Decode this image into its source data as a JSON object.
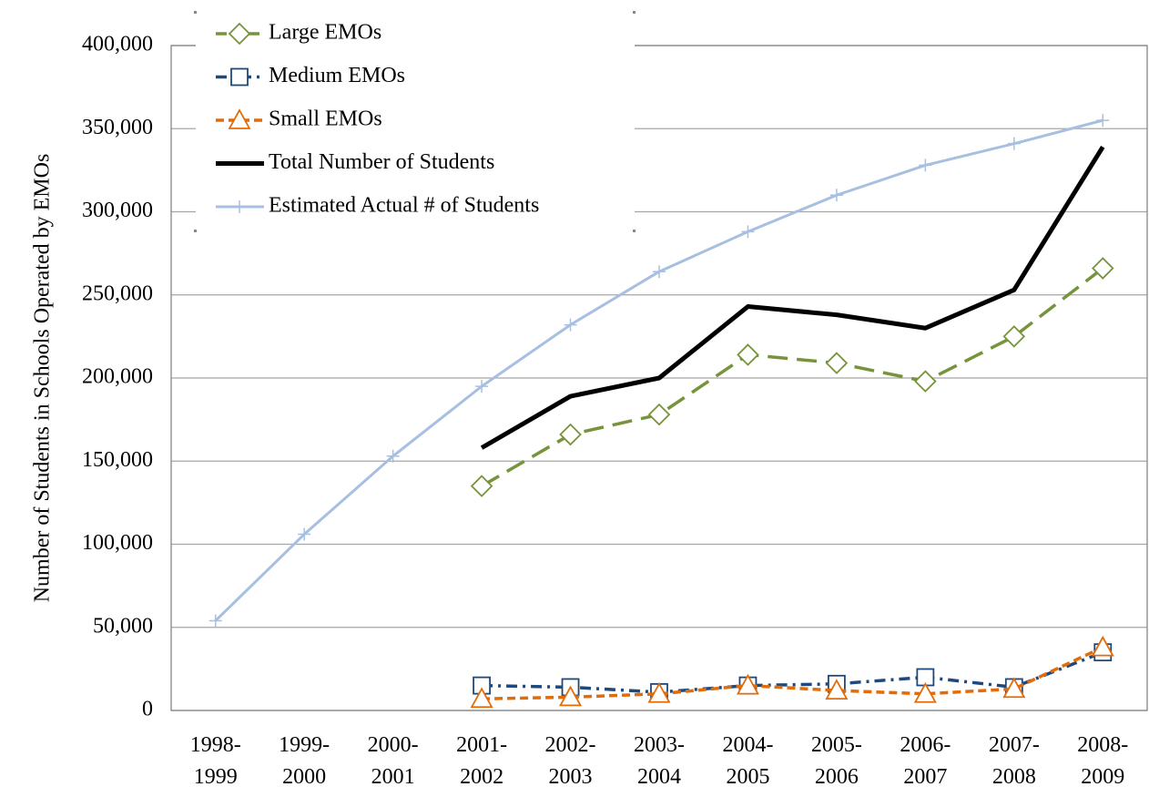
{
  "chart_data": {
    "type": "line",
    "y_label": "Number of  Students in Schools Operated by EMOs",
    "categories": [
      "1998-1999",
      "1999-2000",
      "2000-2001",
      "2001-2002",
      "2002-2003",
      "2003-2004",
      "2004-2005",
      "2005-2006",
      "2006-2007",
      "2007-2008",
      "2008-2009"
    ],
    "series": [
      {
        "name": "Large EMOs",
        "color": "#77933c",
        "dash": "22,10",
        "width": 3.5,
        "marker": "diamond",
        "values": [
          null,
          null,
          null,
          135000,
          166000,
          178000,
          214000,
          209000,
          198000,
          225000,
          266000
        ]
      },
      {
        "name": "Medium EMOs",
        "color": "#1f497d",
        "dash": "12,6,3,6",
        "width": 3.5,
        "marker": "square",
        "values": [
          null,
          null,
          null,
          15000,
          14000,
          11000,
          15000,
          16000,
          20000,
          14000,
          35000
        ]
      },
      {
        "name": "Small EMOs",
        "color": "#e36c09",
        "dash": "9,5",
        "width": 3.5,
        "marker": "triangle",
        "values": [
          null,
          null,
          null,
          7000,
          8000,
          10000,
          15000,
          12000,
          10000,
          13000,
          38000
        ]
      },
      {
        "name": "Total Number of Students",
        "color": "#000000",
        "dash": "",
        "width": 5,
        "marker": "none",
        "values": [
          null,
          null,
          null,
          158000,
          189000,
          200000,
          243000,
          238000,
          230000,
          253000,
          339000
        ]
      },
      {
        "name": "Estimated Actual # of Students",
        "color": "#a7bfe0",
        "dash": "",
        "width": 3,
        "marker": "plus",
        "values": [
          54000,
          106000,
          153000,
          195000,
          232000,
          264000,
          288000,
          310000,
          328000,
          341000,
          355000
        ]
      }
    ],
    "ylim": [
      0,
      400000
    ],
    "yticks": [
      0,
      {
        "value": 50000,
        "label": "50,000"
      },
      {
        "value": 100000,
        "label": "100,000"
      },
      {
        "value": 150000,
        "label": "150,000"
      },
      {
        "value": 200000,
        "label": "200,000"
      },
      {
        "value": 250000,
        "label": "250,000"
      },
      {
        "value": 300000,
        "label": "300,000"
      },
      {
        "value": 350000,
        "label": "350,000"
      },
      {
        "value": 400000,
        "label": "400,000"
      }
    ],
    "grid": true,
    "legend": "upper left"
  }
}
